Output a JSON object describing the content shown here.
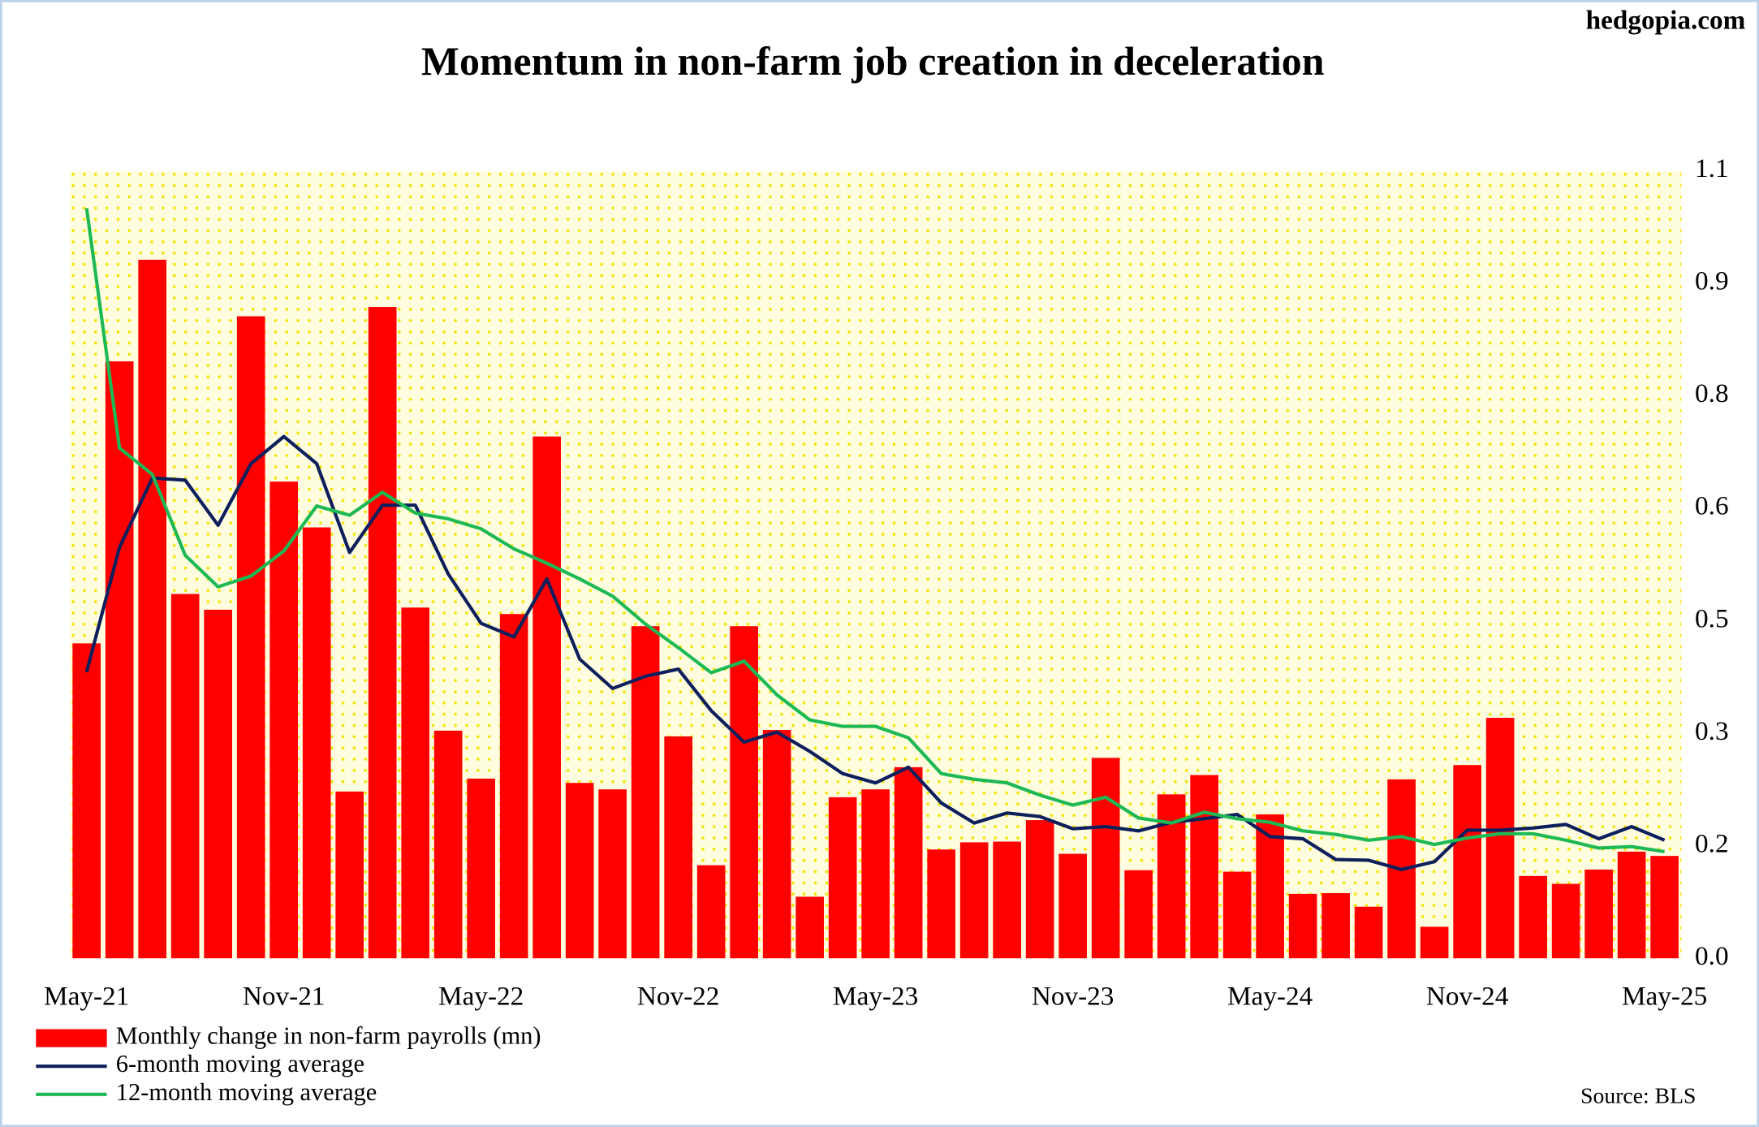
{
  "chart_data": {
    "type": "bar",
    "title": "Momentum in non-farm job creation in deceleration",
    "watermark": "hedgopia.com",
    "source": "Source: BLS",
    "categories": [
      "May-21",
      null,
      null,
      null,
      null,
      null,
      "Nov-21",
      null,
      null,
      null,
      null,
      null,
      "May-22",
      null,
      null,
      null,
      null,
      null,
      "Nov-22",
      null,
      null,
      null,
      null,
      null,
      "May-23",
      null,
      null,
      null,
      null,
      null,
      "Nov-23",
      null,
      null,
      null,
      null,
      null,
      "May-24",
      null,
      null,
      null,
      null,
      null,
      "Nov-24",
      null,
      null,
      null,
      null,
      null,
      "May-25"
    ],
    "ylim": [
      0,
      1.1
    ],
    "yticks": [
      {
        "value": 0,
        "label": "0.0"
      },
      {
        "value": 0.157,
        "label": "0.2"
      },
      {
        "value": 0.314,
        "label": "0.3"
      },
      {
        "value": 0.471,
        "label": "0.5"
      },
      {
        "value": 0.629,
        "label": "0.6"
      },
      {
        "value": 0.786,
        "label": "0.8"
      },
      {
        "value": 0.943,
        "label": "0.9"
      },
      1.1
    ],
    "series": [
      {
        "name": "Monthly change in non-farm payrolls (mn)",
        "type": "bar",
        "color": "#ff0000",
        "values": [
          0.44,
          0.834,
          0.976,
          0.509,
          0.487,
          0.897,
          0.666,
          0.602,
          0.233,
          0.91,
          0.49,
          0.318,
          0.251,
          0.481,
          0.729,
          0.245,
          0.236,
          0.464,
          0.31,
          0.13,
          0.464,
          0.319,
          0.086,
          0.225,
          0.236,
          0.267,
          0.152,
          0.162,
          0.163,
          0.193,
          0.146,
          0.28,
          0.123,
          0.229,
          0.256,
          0.121,
          0.201,
          0.09,
          0.091,
          0.072,
          0.25,
          0.044,
          0.27,
          0.336,
          0.115,
          0.104,
          0.124,
          0.149,
          0.143
        ]
      },
      {
        "name": "6-month moving average",
        "type": "line",
        "color": "#0d1f5c",
        "values": [
          0.4,
          0.574,
          0.671,
          0.668,
          0.605,
          0.691,
          0.729,
          0.691,
          0.567,
          0.633,
          0.633,
          0.537,
          0.468,
          0.449,
          0.53,
          0.418,
          0.377,
          0.394,
          0.404,
          0.346,
          0.302,
          0.316,
          0.289,
          0.258,
          0.245,
          0.267,
          0.217,
          0.189,
          0.203,
          0.198,
          0.181,
          0.184,
          0.178,
          0.19,
          0.195,
          0.201,
          0.17,
          0.167,
          0.138,
          0.137,
          0.124,
          0.135,
          0.179,
          0.179,
          0.182,
          0.187,
          0.167,
          0.184,
          0.165
        ]
      },
      {
        "name": "12-month moving average",
        "type": "line",
        "color": "#1db954",
        "values": [
          1.048,
          0.713,
          0.676,
          0.563,
          0.519,
          0.534,
          0.569,
          0.632,
          0.619,
          0.651,
          0.622,
          0.614,
          0.6,
          0.572,
          0.552,
          0.53,
          0.506,
          0.467,
          0.434,
          0.399,
          0.415,
          0.368,
          0.333,
          0.324,
          0.324,
          0.308,
          0.258,
          0.25,
          0.245,
          0.228,
          0.214,
          0.225,
          0.196,
          0.189,
          0.204,
          0.195,
          0.19,
          0.178,
          0.173,
          0.165,
          0.17,
          0.159,
          0.168,
          0.174,
          0.174,
          0.165,
          0.154,
          0.156,
          0.149
        ]
      }
    ]
  }
}
